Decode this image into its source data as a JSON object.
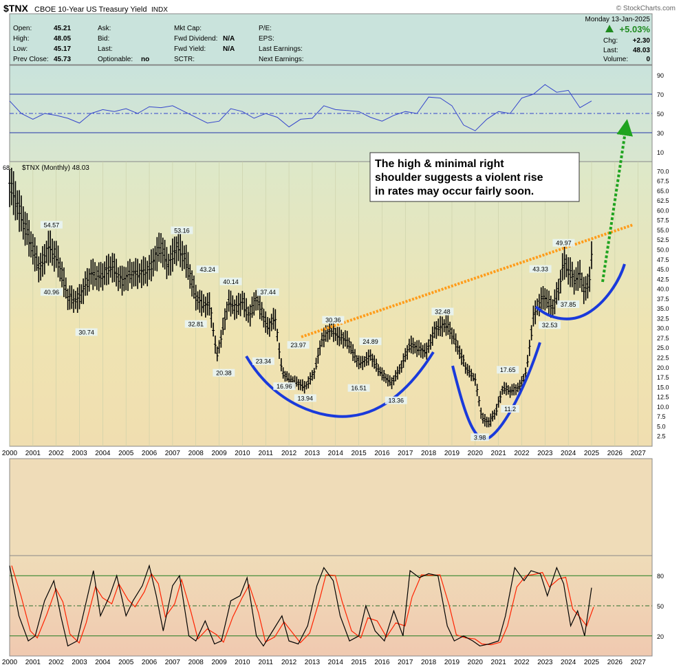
{
  "header": {
    "symbol": "$TNX",
    "name": "CBOE 10-Year US Treasury Yield",
    "exchange": "INDX",
    "watermark": "© StockCharts.com",
    "date": "Monday  13-Jan-2025",
    "change_pct": "+5.03%",
    "chg_label": "Chg:",
    "chg_value": "+2.30",
    "last_label": "Last:",
    "last_value": "48.03",
    "volume_label": "Volume:",
    "volume_value": "0",
    "open_label": "Open:",
    "open_value": "45.21",
    "high_label": "High:",
    "high_value": "48.05",
    "low_label": "Low:",
    "low_value": "45.17",
    "prev_close_label": "Prev Close:",
    "prev_close_value": "45.73",
    "ask_label": "Ask:",
    "bid_label": "Bid:",
    "last2_label": "Last:",
    "optionable_label": "Optionable:",
    "optionable_value": "no",
    "mktcap_label": "Mkt Cap:",
    "fwd_div_label": "Fwd Dividend:",
    "fwd_div_value": "N/A",
    "fwd_yield_label": "Fwd Yield:",
    "fwd_yield_value": "N/A",
    "sctr_label": "SCTR:",
    "pe_label": "P/E:",
    "eps_label": "EPS:",
    "last_earnings_label": "Last Earnings:",
    "next_earnings_label": "Next Earnings:"
  },
  "colors": {
    "bar": "#000000",
    "rsi_line": "#3344cc",
    "stoch_k": "#000000",
    "stoch_d": "#ff2200",
    "cup": "#1a3adb",
    "trend": "#ff9c1a",
    "arrow": "#1fa31f",
    "label_bg": "#e8f4f4"
  },
  "chart_data": [
    {
      "type": "line",
      "name": "rsi-panel",
      "yticks": [
        90,
        70,
        50,
        30,
        10
      ],
      "levels": [
        70,
        50,
        30
      ],
      "series": [
        {
          "name": "",
          "x": [
            2000.0,
            2000.5,
            2001.0,
            2001.5,
            2002.0,
            2002.5,
            2003.0,
            2003.5,
            2004.0,
            2004.5,
            2005.0,
            2005.5,
            2006.0,
            2006.5,
            2007.0,
            2007.5,
            2008.0,
            2008.5,
            2009.0,
            2009.5,
            2010.0,
            2010.5,
            2011.0,
            2011.5,
            2012.0,
            2012.5,
            2013.0,
            2013.5,
            2014.0,
            2014.5,
            2015.0,
            2015.5,
            2016.0,
            2016.5,
            2017.0,
            2017.5,
            2018.0,
            2018.5,
            2019.0,
            2019.5,
            2020.0,
            2020.5,
            2021.0,
            2021.5,
            2022.0,
            2022.5,
            2023.0,
            2023.5,
            2024.0,
            2024.5,
            2025.0
          ],
          "y": [
            63,
            50,
            44,
            50,
            48,
            45,
            40,
            50,
            54,
            52,
            55,
            50,
            57,
            56,
            58,
            52,
            46,
            40,
            42,
            55,
            52,
            45,
            50,
            46,
            36,
            44,
            45,
            58,
            54,
            53,
            52,
            46,
            42,
            48,
            52,
            50,
            67,
            66,
            58,
            38,
            32,
            44,
            52,
            50,
            66,
            70,
            80,
            72,
            74,
            56,
            63
          ]
        }
      ]
    },
    {
      "type": "bar",
      "name": "price-panel",
      "title": "$TNX (Monthly) 48.03",
      "ylim": [
        0,
        72.5
      ],
      "yticks": [
        2.5,
        5.0,
        7.5,
        10.0,
        12.5,
        15.0,
        17.5,
        20.0,
        22.5,
        25.0,
        27.5,
        30.0,
        32.5,
        35.0,
        37.5,
        40.0,
        42.5,
        45.0,
        47.5,
        50.0,
        52.5,
        55.0,
        57.5,
        60.0,
        62.5,
        65.0,
        67.5,
        70.0
      ],
      "xlim": [
        2000,
        2027.6
      ],
      "xticks": [
        "2000",
        "2001",
        "2002",
        "2003",
        "2004",
        "2005",
        "2006",
        "2007",
        "2008",
        "2009",
        "2010",
        "2011",
        "2012",
        "2013",
        "2014",
        "2015",
        "2016",
        "2017",
        "2018",
        "2019",
        "2020",
        "2021",
        "2022",
        "2023",
        "2024",
        "2025",
        "2026",
        "2027"
      ],
      "anchors": {
        "x": [
          2000.0,
          2000.3,
          2000.9,
          2001.3,
          2001.7,
          2002.1,
          2002.5,
          2002.9,
          2003.1,
          2003.5,
          2003.9,
          2004.4,
          2004.8,
          2005.2,
          2005.6,
          2006.0,
          2006.5,
          2006.8,
          2007.2,
          2007.6,
          2008.0,
          2008.3,
          2008.6,
          2008.9,
          2009.1,
          2009.4,
          2009.7,
          2010.0,
          2010.3,
          2010.6,
          2011.1,
          2011.4,
          2011.7,
          2012.0,
          2012.4,
          2012.7,
          2013.1,
          2013.4,
          2013.8,
          2014.1,
          2014.5,
          2014.9,
          2015.1,
          2015.5,
          2015.9,
          2016.4,
          2016.8,
          2017.2,
          2017.5,
          2017.9,
          2018.3,
          2018.8,
          2019.2,
          2019.6,
          2020.0,
          2020.3,
          2020.6,
          2020.9,
          2021.2,
          2021.5,
          2021.9,
          2022.2,
          2022.5,
          2022.8,
          2023.0,
          2023.3,
          2023.6,
          2023.8,
          2024.0,
          2024.3,
          2024.5,
          2024.7,
          2024.9,
          2025.0
        ],
        "y": [
          67,
          62,
          52,
          45,
          51,
          47,
          38,
          37,
          39,
          44,
          43,
          46,
          42,
          44,
          44,
          45,
          51,
          46,
          51,
          47,
          38,
          36,
          36,
          23,
          28,
          37,
          35,
          37,
          33,
          38,
          30,
          33,
          19,
          17,
          16,
          15,
          19,
          27,
          30,
          28,
          27,
          22,
          21,
          23,
          19,
          16,
          20,
          26,
          25,
          24,
          30,
          31,
          26,
          20,
          17,
          7,
          6,
          9,
          15,
          14,
          15,
          19,
          33,
          37,
          38,
          35,
          40,
          47,
          45,
          42,
          44,
          39,
          42,
          48
        ]
      }
    },
    {
      "type": "line",
      "name": "stochastic-panel",
      "yticks": [
        80,
        50,
        20
      ],
      "levels": [
        80,
        50,
        20
      ],
      "series": [
        {
          "name": "",
          "x": [
            2000.0,
            2000.4,
            2000.8,
            2001.1,
            2001.5,
            2001.9,
            2002.2,
            2002.5,
            2002.9,
            2003.2,
            2003.6,
            2003.9,
            2004.3,
            2004.6,
            2005.0,
            2005.3,
            2005.7,
            2006.0,
            2006.3,
            2006.6,
            2007.0,
            2007.3,
            2007.7,
            2008.0,
            2008.4,
            2008.8,
            2009.1,
            2009.5,
            2009.9,
            2010.2,
            2010.6,
            2010.9,
            2011.3,
            2011.7,
            2012.0,
            2012.4,
            2012.8,
            2013.2,
            2013.5,
            2013.9,
            2014.2,
            2014.6,
            2015.0,
            2015.3,
            2015.7,
            2016.1,
            2016.5,
            2016.9,
            2017.2,
            2017.6,
            2018.0,
            2018.4,
            2018.8,
            2019.1,
            2019.5,
            2019.9,
            2020.2,
            2020.6,
            2021.0,
            2021.3,
            2021.7,
            2022.1,
            2022.4,
            2022.8,
            2023.1,
            2023.5,
            2023.8,
            2024.1,
            2024.4,
            2024.7,
            2025.0
          ],
          "y": [
            90,
            40,
            15,
            20,
            55,
            75,
            40,
            10,
            15,
            45,
            85,
            40,
            60,
            80,
            40,
            55,
            70,
            90,
            60,
            25,
            70,
            80,
            20,
            15,
            35,
            12,
            15,
            55,
            60,
            78,
            20,
            10,
            25,
            40,
            15,
            12,
            30,
            70,
            88,
            75,
            40,
            15,
            20,
            50,
            25,
            15,
            45,
            20,
            85,
            78,
            82,
            80,
            30,
            15,
            20,
            15,
            10,
            12,
            15,
            40,
            88,
            75,
            85,
            82,
            60,
            88,
            72,
            30,
            45,
            20,
            68
          ]
        }
      ]
    }
  ],
  "pivot_labels": [
    {
      "text": "54.57",
      "x": 2001.8,
      "y": 54.57,
      "pos": "above"
    },
    {
      "text": "40.96",
      "x": 2001.8,
      "y": 40.96,
      "pos": "below"
    },
    {
      "text": "30.74",
      "x": 2003.3,
      "y": 30.74,
      "pos": "below"
    },
    {
      "text": "53.16",
      "x": 2007.4,
      "y": 53.16,
      "pos": "above"
    },
    {
      "text": "43.24",
      "x": 2008.5,
      "y": 43.24,
      "pos": "above"
    },
    {
      "text": "32.81",
      "x": 2008.0,
      "y": 32.81,
      "pos": "below"
    },
    {
      "text": "40.14",
      "x": 2009.5,
      "y": 40.14,
      "pos": "above"
    },
    {
      "text": "20.38",
      "x": 2009.2,
      "y": 20.38,
      "pos": "below"
    },
    {
      "text": "37.44",
      "x": 2011.1,
      "y": 37.44,
      "pos": "above"
    },
    {
      "text": "23.34",
      "x": 2010.9,
      "y": 23.34,
      "pos": "below"
    },
    {
      "text": "23.97",
      "x": 2012.4,
      "y": 23.97,
      "pos": "above"
    },
    {
      "text": "16.96",
      "x": 2011.8,
      "y": 16.96,
      "pos": "below"
    },
    {
      "text": "13.94",
      "x": 2012.7,
      "y": 13.94,
      "pos": "below"
    },
    {
      "text": "30.36",
      "x": 2013.9,
      "y": 30.36,
      "pos": "above"
    },
    {
      "text": "24.89",
      "x": 2015.5,
      "y": 24.89,
      "pos": "above"
    },
    {
      "text": "16.51",
      "x": 2015.0,
      "y": 16.51,
      "pos": "below"
    },
    {
      "text": "13.36",
      "x": 2016.6,
      "y": 13.36,
      "pos": "below"
    },
    {
      "text": "32.48",
      "x": 2018.6,
      "y": 32.48,
      "pos": "above"
    },
    {
      "text": "17.65",
      "x": 2021.4,
      "y": 17.65,
      "pos": "above"
    },
    {
      "text": "11.2",
      "x": 2021.5,
      "y": 11.2,
      "pos": "below"
    },
    {
      "text": "3.98",
      "x": 2020.2,
      "y": 3.98,
      "pos": "below"
    },
    {
      "text": "43.33",
      "x": 2022.8,
      "y": 43.33,
      "pos": "above"
    },
    {
      "text": "32.53",
      "x": 2023.2,
      "y": 32.53,
      "pos": "below"
    },
    {
      "text": "49.97",
      "x": 2023.8,
      "y": 49.97,
      "pos": "above"
    },
    {
      "text": "37.85",
      "x": 2024.0,
      "y": 37.85,
      "pos": "below"
    }
  ],
  "annotation_text": [
    "The high & minimal right",
    "shoulder suggests a violent rise",
    "in rates may occur fairly soon."
  ]
}
